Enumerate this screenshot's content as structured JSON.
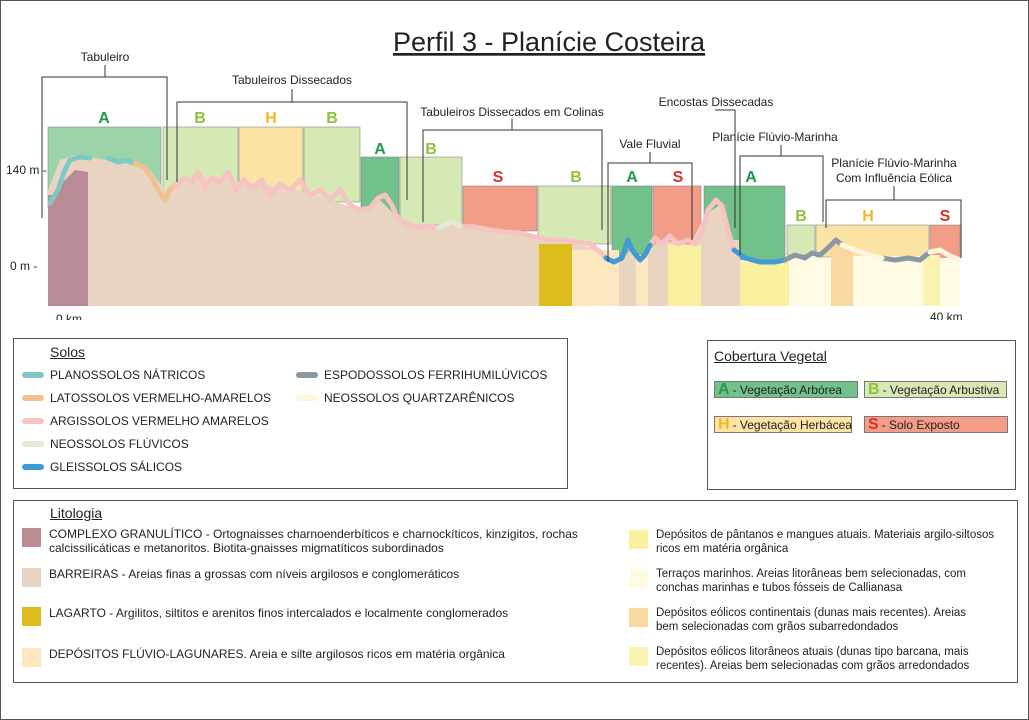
{
  "title": "Perfil 3 - Planície Costeira",
  "axis": {
    "y_top": "140 m -",
    "y_zero": "0 m -",
    "x_start": "0 km",
    "x_end": "40 km"
  },
  "units": [
    {
      "name": "Tabuleiro"
    },
    {
      "name": "Tabuleiros Dissecados"
    },
    {
      "name": "Tabuleiros Dissecados em Colinas"
    },
    {
      "name": "Vale Fluvial"
    },
    {
      "name": "Encostas Dissecadas"
    },
    {
      "name": "Planície Flúvio-Marinha"
    },
    {
      "name": "Planície Flúvio-Marinha",
      "name2": "Com Influência Eólica"
    }
  ],
  "vegetation_blocks": [
    {
      "letter": "A",
      "fill": "#9cd3a8",
      "color": "#1f9a4c"
    },
    {
      "letter": "B",
      "fill": "#d6e9b4",
      "color": "#8dc23f"
    },
    {
      "letter": "H",
      "fill": "#fbe3a6",
      "color": "#f2b722"
    },
    {
      "letter": "B",
      "fill": "#d6e9b4",
      "color": "#8dc23f"
    },
    {
      "letter": "A",
      "fill": "#72c08a",
      "color": "#1f9a4c"
    },
    {
      "letter": "B",
      "fill": "#d6e9b4",
      "color": "#8dc23f"
    },
    {
      "letter": "S",
      "fill": "#f39c87",
      "color": "#d9302b"
    },
    {
      "letter": "B",
      "fill": "#d6e9b4",
      "color": "#8dc23f"
    },
    {
      "letter": "A",
      "fill": "#72c08a",
      "color": "#1f9a4c"
    },
    {
      "letter": "S",
      "fill": "#f39c87",
      "color": "#d9302b"
    },
    {
      "letter": "A",
      "fill": "#72c08a",
      "color": "#1f9a4c"
    },
    {
      "letter": "B",
      "fill": "#d6e9b4",
      "color": "#8dc23f"
    },
    {
      "letter": "H",
      "fill": "#fbe3a6",
      "color": "#f2b722"
    },
    {
      "letter": "S",
      "fill": "#f39c87",
      "color": "#d9302b"
    }
  ],
  "solos": {
    "title": "Solos",
    "items": [
      {
        "label": "PLANOSSOLOS NÁTRICOS",
        "color": "#7fc8c6"
      },
      {
        "label": "LATOSSOLOS VERMELHO-AMARELOS",
        "color": "#f2c08f"
      },
      {
        "label": "ARGISSOLOS VERMELHO AMARELOS",
        "color": "#f6c3c3"
      },
      {
        "label": "NEOSSOLOS FLÚVICOS",
        "color": "#e6e7d6"
      },
      {
        "label": "GLEISSOLOS SÁLICOS",
        "color": "#3f9bd6"
      },
      {
        "label": "ESPODOSSOLOS FERRIHUMILÚVICOS",
        "color": "#8c98a1"
      },
      {
        "label": "NEOSSOLOS QUARTZARÊNICOS",
        "color": "#fcf7dc"
      }
    ]
  },
  "cobertura": {
    "title": "Cobertura Vegetal",
    "items": [
      {
        "letter": "A",
        "label": "- Vegetação Arbórea",
        "fill": "#72c08a",
        "color": "#1f9a4c"
      },
      {
        "letter": "B",
        "label": "- Vegetação Arbustiva",
        "fill": "#d6e9b4",
        "color": "#8dc23f"
      },
      {
        "letter": "H",
        "label": "- Vegetação Herbácea",
        "fill": "#fbe3a6",
        "color": "#f2b722"
      },
      {
        "letter": "S",
        "label": "- Solo Exposto",
        "fill": "#f39c87",
        "color": "#d9302b"
      }
    ]
  },
  "litologia": {
    "title": "Litologia",
    "left": [
      {
        "label": "COMPLEXO GRANULÍTICO - Ortognaisses charnoenderbíticos e charnockíticos, kinzigitos, rochas\ncalcissilicáticas e metanoritos. Biotita-gnaisses migmatíticos subordinados",
        "color": "#b98b94"
      },
      {
        "label": "BARREIRAS - Areias finas a grossas com níveis argilosos e conglomeráticos",
        "color": "#e9d4c2"
      },
      {
        "label": "LAGARTO - Argilitos, siltitos e arenitos finos intercalados e localmente conglomerados",
        "color": "#dcbb1c"
      },
      {
        "label": "DEPÓSITOS FLÚVIO-LAGUNARES. Areia e silte argilosos ricos em matéria orgânica",
        "color": "#fde7c0"
      }
    ],
    "right": [
      {
        "label": "Depósitos de pântanos e mangues atuais. Materiais argilo-siltosos\nricos em matéria orgânica",
        "color": "#f9f1a0"
      },
      {
        "label": "Terraços marinhos. Areias litorâneas bem selecionadas, com\nconchas marinhas e tubos fósseis de Callianasa",
        "color": "#fefae3"
      },
      {
        "label": "Depósitos eólicos continentais (dunas mais recentes). Areias\nbem selecionadas com grãos subarredondados",
        "color": "#f8d89e"
      },
      {
        "label": "Depósitos eólicos litorâneos atuais (dunas tipo barcana, mais\nrecentes). Areias bem selecionadas com grãos arredondados",
        "color": "#faf2b0"
      }
    ]
  }
}
